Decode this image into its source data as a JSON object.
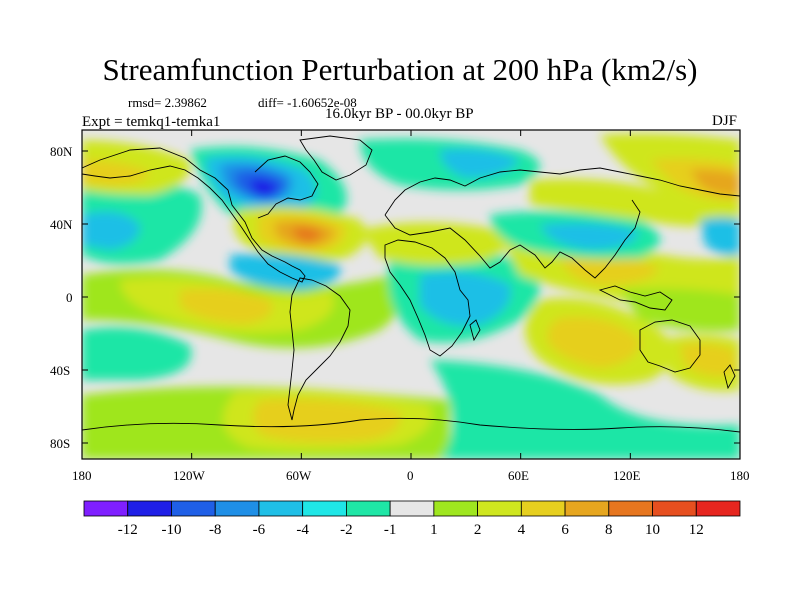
{
  "title": "Streamfunction Perturbation at 200 hPa (km2/s)",
  "stats": {
    "rmsd": "rmsd= 2.39862",
    "diff": "diff= -1.60652e-08"
  },
  "experiment": "Expt = temkq1-temka1",
  "period": "16.0kyr BP - 00.0kyr BP",
  "season": "DJF",
  "axes": {
    "lat_labels": [
      "80N",
      "40N",
      "0",
      "40S",
      "80S"
    ],
    "lon_labels": [
      "180",
      "120W",
      "60W",
      "0",
      "60E",
      "120E",
      "180"
    ]
  },
  "colorbar": {
    "colors": [
      "#7f1fff",
      "#1f1fe6",
      "#1f5fe6",
      "#1f8fe6",
      "#1fbfe6",
      "#1fe6e6",
      "#1fe6a6",
      "#e6e6e6",
      "#9fe61f",
      "#cfe61f",
      "#e6cf1f",
      "#e6a61f",
      "#e6761f",
      "#e64f1f",
      "#e6261f"
    ],
    "labels": [
      "-12",
      "-10",
      "-8",
      "-6",
      "-4",
      "-2",
      "-1",
      "1",
      "2",
      "4",
      "6",
      "8",
      "10",
      "12"
    ]
  }
}
